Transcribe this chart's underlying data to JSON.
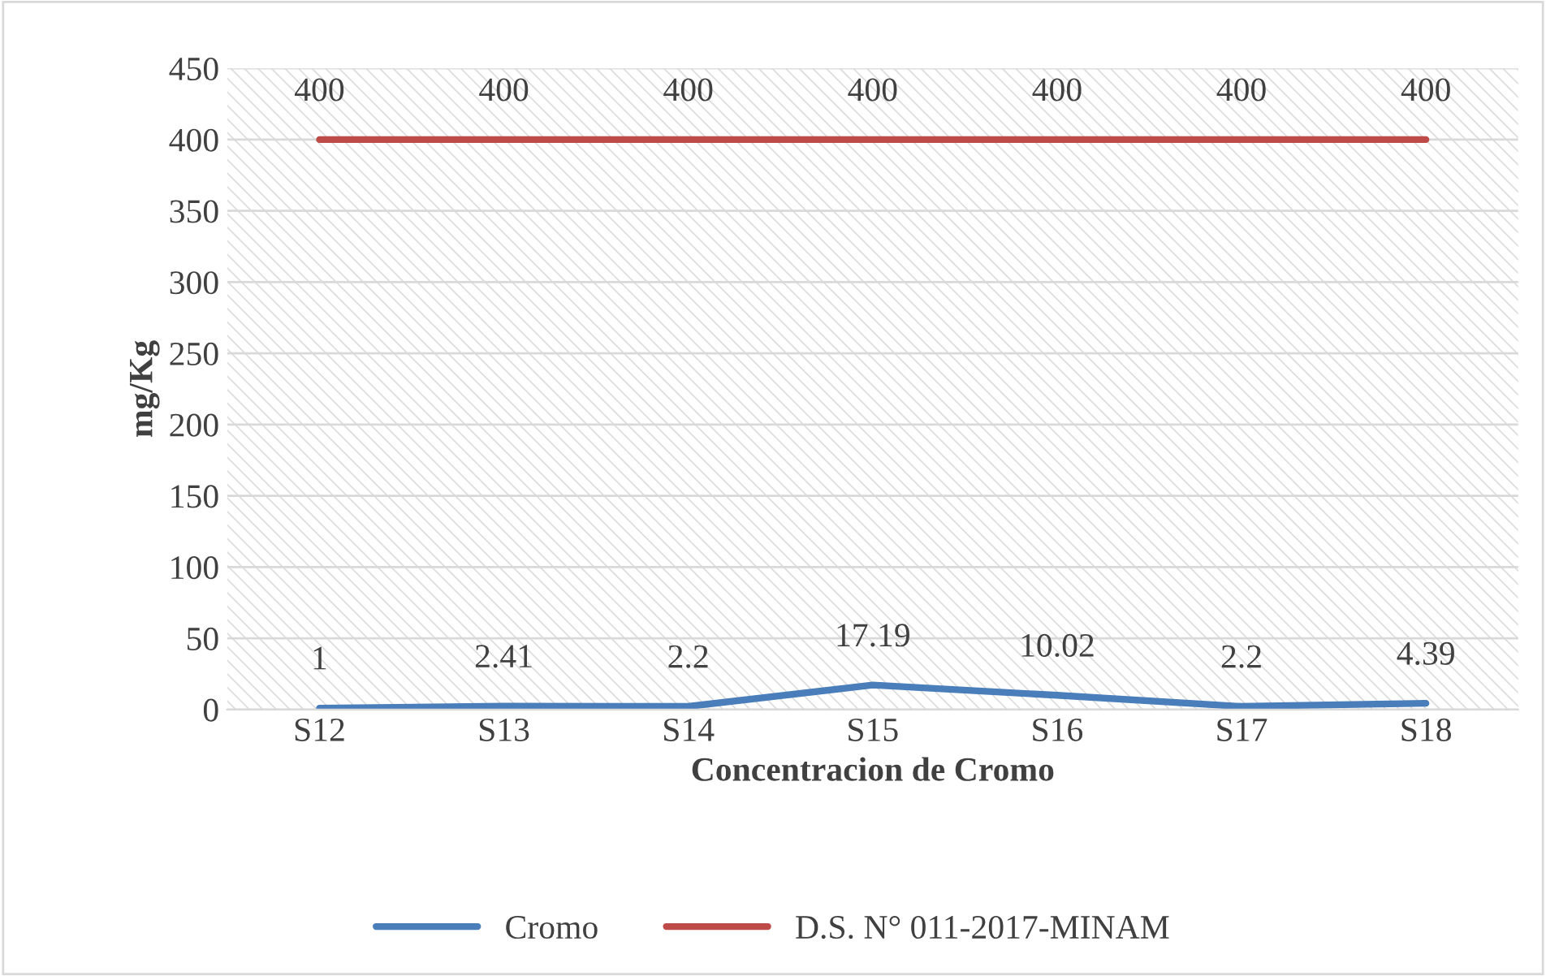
{
  "chart_data": {
    "type": "line",
    "xlabel": "Concentracion de Cromo",
    "ylabel": "mg/Kg",
    "categories": [
      "S12",
      "S13",
      "S14",
      "S15",
      "S16",
      "S17",
      "S18"
    ],
    "series": [
      {
        "name": "Cromo",
        "color": "#4a7ebb",
        "values": [
          1,
          2.41,
          2.2,
          17.19,
          10.02,
          2.2,
          4.39
        ]
      },
      {
        "name": "D.S. N° 011-2017-MINAM",
        "color": "#be4b48",
        "values": [
          400,
          400,
          400,
          400,
          400,
          400,
          400
        ]
      }
    ],
    "ylim": [
      0,
      450
    ],
    "yticks": [
      0,
      50,
      100,
      150,
      200,
      250,
      300,
      350,
      400,
      450
    ],
    "grid": "y",
    "legend": "bottom",
    "data_labels": true,
    "marker": "none",
    "line_style": "solid"
  }
}
